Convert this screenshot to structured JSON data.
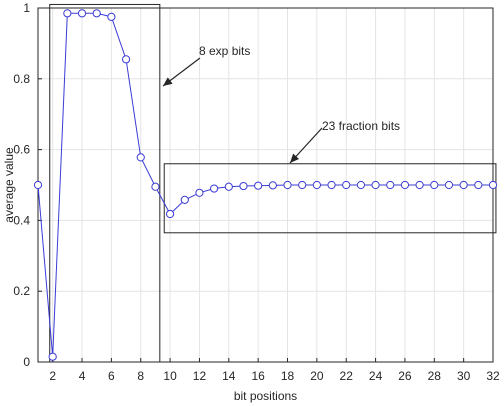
{
  "chart_data": {
    "type": "line",
    "title": "",
    "xlabel": "bit positions",
    "ylabel": "average value",
    "xlim": [
      1,
      32
    ],
    "ylim": [
      0,
      1
    ],
    "xticks": [
      2,
      4,
      6,
      8,
      10,
      12,
      14,
      16,
      18,
      20,
      22,
      24,
      26,
      28,
      30,
      32
    ],
    "yticks": [
      0,
      0.2,
      0.4,
      0.6,
      0.8,
      1
    ],
    "ytick_labels": [
      "0",
      "0.2",
      "0.4",
      "0.6",
      "0.8",
      "1"
    ],
    "grid": true,
    "line_color": "#3b3bd6",
    "marker": "circle",
    "series": [
      {
        "x": [
          1,
          2,
          3,
          4,
          5,
          6,
          7,
          8,
          9,
          10,
          11,
          12,
          13,
          14,
          15,
          16,
          17,
          18,
          19,
          20,
          21,
          22,
          23,
          24,
          25,
          26,
          27,
          28,
          29,
          30,
          31,
          32
        ],
        "values": [
          0.5,
          0.015,
          0.985,
          0.985,
          0.985,
          0.975,
          0.855,
          0.578,
          0.495,
          0.418,
          0.458,
          0.478,
          0.49,
          0.495,
          0.497,
          0.498,
          0.499,
          0.5,
          0.5,
          0.5,
          0.5,
          0.5,
          0.5,
          0.5,
          0.5,
          0.5,
          0.5,
          0.5,
          0.5,
          0.5,
          0.5,
          0.5
        ]
      }
    ],
    "annotations": [
      {
        "label": "8 exp bits",
        "box_x": [
          1.8,
          9.3
        ],
        "box_y": [
          0,
          1.01
        ]
      },
      {
        "label": "23 fraction bits",
        "box_x": [
          9.6,
          32.2
        ],
        "box_y": [
          0.365,
          0.56
        ]
      }
    ]
  }
}
